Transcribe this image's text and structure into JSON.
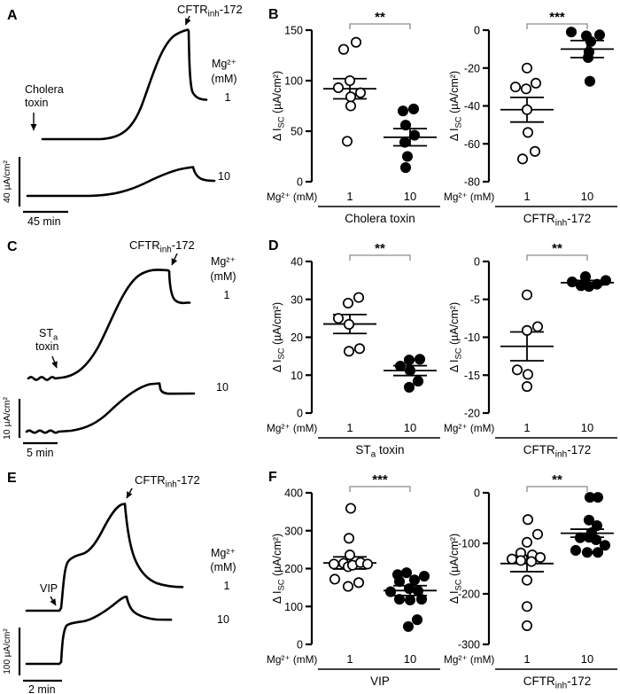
{
  "figure": {
    "rows": [
      {
        "trace": {
          "panel": "A",
          "inhibitor_parts": [
            [
              "CFTR",
              0
            ],
            [
              "inh",
              1
            ],
            [
              "-172",
              0
            ]
          ],
          "stimulus_line1_parts": [
            [
              "Cholera",
              0
            ]
          ],
          "stimulus_line2": "toxin",
          "mg_sup": "Mg²⁺",
          "mg_unit": "(mM)",
          "mg_low": "1",
          "mg_high": "10",
          "v_scale": "40 µA/cm²",
          "h_scale": "45 min"
        }
      },
      {
        "trace": {
          "panel": "C",
          "inhibitor_parts": [
            [
              "CFTR",
              0
            ],
            [
              "inh",
              1
            ],
            [
              "-172",
              0
            ]
          ],
          "stimulus_line1_parts": [
            [
              "ST",
              0
            ],
            [
              "a",
              1
            ]
          ],
          "stimulus_line2": "toxin",
          "mg_sup": "Mg²⁺",
          "mg_unit": "(mM)",
          "mg_low": "1",
          "mg_high": "10",
          "v_scale": "10 µA/cm²",
          "h_scale": "5 min"
        }
      },
      {
        "trace": {
          "panel": "E",
          "inhibitor_parts": [
            [
              "CFTR",
              0
            ],
            [
              "inh",
              1
            ],
            [
              "-172",
              0
            ]
          ],
          "stimulus_line1_parts": [
            [
              "VIP",
              0
            ]
          ],
          "stimulus_line2": "",
          "mg_sup": "Mg²⁺",
          "mg_unit": "(mM)",
          "mg_low": "1",
          "mg_high": "10",
          "v_scale": "100 µA/cm²",
          "h_scale": "2 min"
        }
      }
    ]
  },
  "chart_data": [
    {
      "type": "scatter",
      "panel": "B",
      "sig": "**",
      "ylim": [
        0,
        150
      ],
      "yticks": [
        150,
        100,
        50,
        0
      ],
      "ylabel_parts": [
        [
          "Δ I",
          0
        ],
        [
          "SC",
          1
        ],
        [
          " (µA/cm²)",
          0
        ]
      ],
      "x_row_label": "Mg²⁺ (mM)",
      "group_labels": [
        "1",
        "10"
      ],
      "treatment_parts": [
        [
          "Cholera toxin",
          0
        ]
      ],
      "groups": [
        {
          "mg": "1",
          "style": "open",
          "mean": 92,
          "sem": 10,
          "points": [
            [
              -7,
              131
            ],
            [
              7,
              138
            ],
            [
              0,
              100
            ],
            [
              -13,
              93
            ],
            [
              12,
              88
            ],
            [
              1,
              84
            ],
            [
              1,
              75
            ],
            [
              -3,
              40
            ]
          ]
        },
        {
          "mg": "10",
          "style": "filled",
          "mean": 44,
          "sem": 8.5,
          "points": [
            [
              -8,
              70
            ],
            [
              4,
              72
            ],
            [
              -5,
              56
            ],
            [
              5,
              46
            ],
            [
              -6,
              39
            ],
            [
              -3,
              25
            ],
            [
              -5,
              14
            ]
          ]
        }
      ]
    },
    {
      "type": "scatter",
      "panel": "",
      "sig": "***",
      "ylim": [
        -80,
        0
      ],
      "yticks": [
        0,
        -20,
        -40,
        -60,
        -80
      ],
      "ylabel_parts": [
        [
          "Δ I",
          0
        ],
        [
          "SC",
          1
        ],
        [
          " (µA/cm²)",
          0
        ]
      ],
      "x_row_label": "Mg²⁺ (mM)",
      "group_labels": [
        "1",
        "10"
      ],
      "treatment_parts": [
        [
          "CFTR",
          0
        ],
        [
          "inh",
          1
        ],
        [
          "-172",
          0
        ]
      ],
      "groups": [
        {
          "mg": "1",
          "style": "open",
          "mean": -42,
          "sem": 6.5,
          "points": [
            [
              0,
              -20
            ],
            [
              10,
              -28
            ],
            [
              -13,
              -30
            ],
            [
              -1,
              -31
            ],
            [
              0,
              -42
            ],
            [
              1,
              -54
            ],
            [
              9,
              -64
            ],
            [
              -5,
              -68
            ]
          ]
        },
        {
          "mg": "10",
          "style": "filled",
          "mean": -10,
          "sem": 4.5,
          "points": [
            [
              -18,
              -1
            ],
            [
              -1,
              -3
            ],
            [
              14,
              -2.5
            ],
            [
              4,
              -6
            ],
            [
              2,
              -11.5
            ],
            [
              1,
              -14.5
            ],
            [
              3,
              -27
            ]
          ]
        }
      ]
    },
    {
      "type": "scatter",
      "panel": "D",
      "sig": "**",
      "ylim": [
        0,
        40
      ],
      "yticks": [
        40,
        30,
        20,
        10,
        0
      ],
      "ylabel_parts": [
        [
          "Δ I",
          0
        ],
        [
          "SC",
          1
        ],
        [
          " (µA/cm²)",
          0
        ]
      ],
      "x_row_label": "Mg²⁺ (mM)",
      "group_labels": [
        "1",
        "10"
      ],
      "treatment_parts": [
        [
          "ST",
          0
        ],
        [
          "a",
          1
        ],
        [
          " toxin",
          0
        ]
      ],
      "groups": [
        {
          "mg": "1",
          "style": "open",
          "mean": 23.5,
          "sem": 2.5,
          "points": [
            [
              -2,
              29
            ],
            [
              10,
              30.5
            ],
            [
              -13,
              25
            ],
            [
              -1,
              23.4
            ],
            [
              -1,
              16.3
            ],
            [
              11,
              17
            ]
          ]
        },
        {
          "mg": "10",
          "style": "filled",
          "mean": 11.2,
          "sem": 1.3,
          "points": [
            [
              -1,
              14
            ],
            [
              11,
              14.2
            ],
            [
              -11,
              12.4
            ],
            [
              0,
              11.2
            ],
            [
              9,
              8.4
            ],
            [
              -1,
              6.8
            ]
          ]
        }
      ]
    },
    {
      "type": "scatter",
      "panel": "",
      "sig": "**",
      "ylim": [
        -20,
        0
      ],
      "yticks": [
        0,
        -5,
        -10,
        -15,
        -20
      ],
      "ylabel_parts": [
        [
          "Δ I",
          0
        ],
        [
          "SC",
          1
        ],
        [
          " (µA/cm²)",
          0
        ]
      ],
      "x_row_label": "Mg²⁺ (mM)",
      "group_labels": [
        "1",
        "10"
      ],
      "treatment_parts": [
        [
          "CFTR",
          0
        ],
        [
          "inh",
          1
        ],
        [
          "-172",
          0
        ]
      ],
      "groups": [
        {
          "mg": "1",
          "style": "open",
          "mean": -11.2,
          "sem": 1.9,
          "points": [
            [
              0,
              -4.4
            ],
            [
              12,
              -8.6
            ],
            [
              0,
              -9.1
            ],
            [
              -11,
              -14.3
            ],
            [
              1,
              -14.9
            ],
            [
              0,
              -16.5
            ]
          ]
        },
        {
          "mg": "10",
          "style": "filled",
          "mean": -2.8,
          "sem": 0.3,
          "points": [
            [
              -2,
              -2.0
            ],
            [
              -17,
              -2.7
            ],
            [
              -7,
              -3.2
            ],
            [
              2,
              -3.3
            ],
            [
              11,
              -3.0
            ],
            [
              21,
              -2.5
            ]
          ]
        }
      ]
    },
    {
      "type": "scatter",
      "panel": "F",
      "sig": "***",
      "ylim": [
        0,
        400
      ],
      "yticks": [
        400,
        300,
        200,
        100,
        0
      ],
      "ylabel_parts": [
        [
          "Δ I",
          0
        ],
        [
          "SC",
          1
        ],
        [
          " (µA/cm²)",
          0
        ]
      ],
      "x_row_label": "Mg²⁺ (mM)",
      "group_labels": [
        "1",
        "10"
      ],
      "treatment_parts": [
        [
          "VIP",
          0
        ]
      ],
      "groups": [
        {
          "mg": "1",
          "style": "open",
          "mean": 215,
          "sem": 16,
          "points": [
            [
              1,
              359
            ],
            [
              -1,
              280
            ],
            [
              0,
              236
            ],
            [
              -18,
              212
            ],
            [
              -7,
              214
            ],
            [
              -2,
              205
            ],
            [
              3,
              209
            ],
            [
              12,
              216
            ],
            [
              20,
              212
            ],
            [
              -17,
              172
            ],
            [
              -2,
              153
            ],
            [
              10,
              163
            ]
          ]
        },
        {
          "mg": "10",
          "style": "filled",
          "mean": 142,
          "sem": 13,
          "points": [
            [
              -14,
              184
            ],
            [
              -4,
              189
            ],
            [
              16,
              180
            ],
            [
              -12,
              166
            ],
            [
              5,
              170
            ],
            [
              -22,
              139
            ],
            [
              -1,
              147
            ],
            [
              9,
              141
            ],
            [
              -12,
              119
            ],
            [
              0,
              117
            ],
            [
              13,
              119
            ],
            [
              8,
              65
            ],
            [
              -2,
              47
            ]
          ]
        }
      ]
    },
    {
      "type": "scatter",
      "panel": "",
      "sig": "**",
      "ylim": [
        -300,
        0
      ],
      "yticks": [
        0,
        -100,
        -200,
        -300
      ],
      "ylabel_parts": [
        [
          "Δ I",
          0
        ],
        [
          "SC",
          1
        ],
        [
          " (µA/cm²)",
          0
        ]
      ],
      "x_row_label": "Mg²⁺ (mM)",
      "group_labels": [
        "1",
        "10"
      ],
      "treatment_parts": [
        [
          "CFTR",
          0
        ],
        [
          "inh",
          1
        ],
        [
          "-172",
          0
        ]
      ],
      "groups": [
        {
          "mg": "1",
          "style": "open",
          "mean": -140,
          "sem": 16,
          "points": [
            [
              1,
              -53
            ],
            [
              12,
              -82
            ],
            [
              0,
              -98
            ],
            [
              -7,
              -119
            ],
            [
              6,
              -123
            ],
            [
              -17,
              -131
            ],
            [
              -7,
              -134
            ],
            [
              5,
              -136
            ],
            [
              15,
              -128
            ],
            [
              0,
              -173
            ],
            [
              0,
              -225
            ],
            [
              0,
              -263
            ]
          ]
        },
        {
          "mg": "10",
          "style": "filled",
          "mean": -80,
          "sem": 8,
          "points": [
            [
              3,
              -9
            ],
            [
              12,
              -9
            ],
            [
              2,
              -54
            ],
            [
              11,
              -65
            ],
            [
              5,
              -79
            ],
            [
              -8,
              -89
            ],
            [
              2,
              -88
            ],
            [
              10,
              -93
            ],
            [
              -13,
              -114
            ],
            [
              0,
              -118
            ],
            [
              12,
              -118
            ],
            [
              20,
              -104
            ]
          ]
        }
      ]
    },
    {
      "type": "line",
      "panel": "A",
      "description": "Short-circuit current trace pair",
      "stimulus": "Cholera toxin",
      "inhibitor": "CFTRinh-172",
      "conditions_mg_mM": [
        "1",
        "10"
      ],
      "y_scalebar": "40 µA/cm²",
      "x_scalebar": "45 min"
    },
    {
      "type": "line",
      "panel": "C",
      "description": "Short-circuit current trace pair",
      "stimulus": "STa toxin",
      "inhibitor": "CFTRinh-172",
      "conditions_mg_mM": [
        "1",
        "10"
      ],
      "y_scalebar": "10 µA/cm²",
      "x_scalebar": "5 min"
    },
    {
      "type": "line",
      "panel": "E",
      "description": "Short-circuit current trace pair",
      "stimulus": "VIP",
      "inhibitor": "CFTRinh-172",
      "conditions_mg_mM": [
        "1",
        "10"
      ],
      "y_scalebar": "100 µA/cm²",
      "x_scalebar": "2 min"
    }
  ]
}
